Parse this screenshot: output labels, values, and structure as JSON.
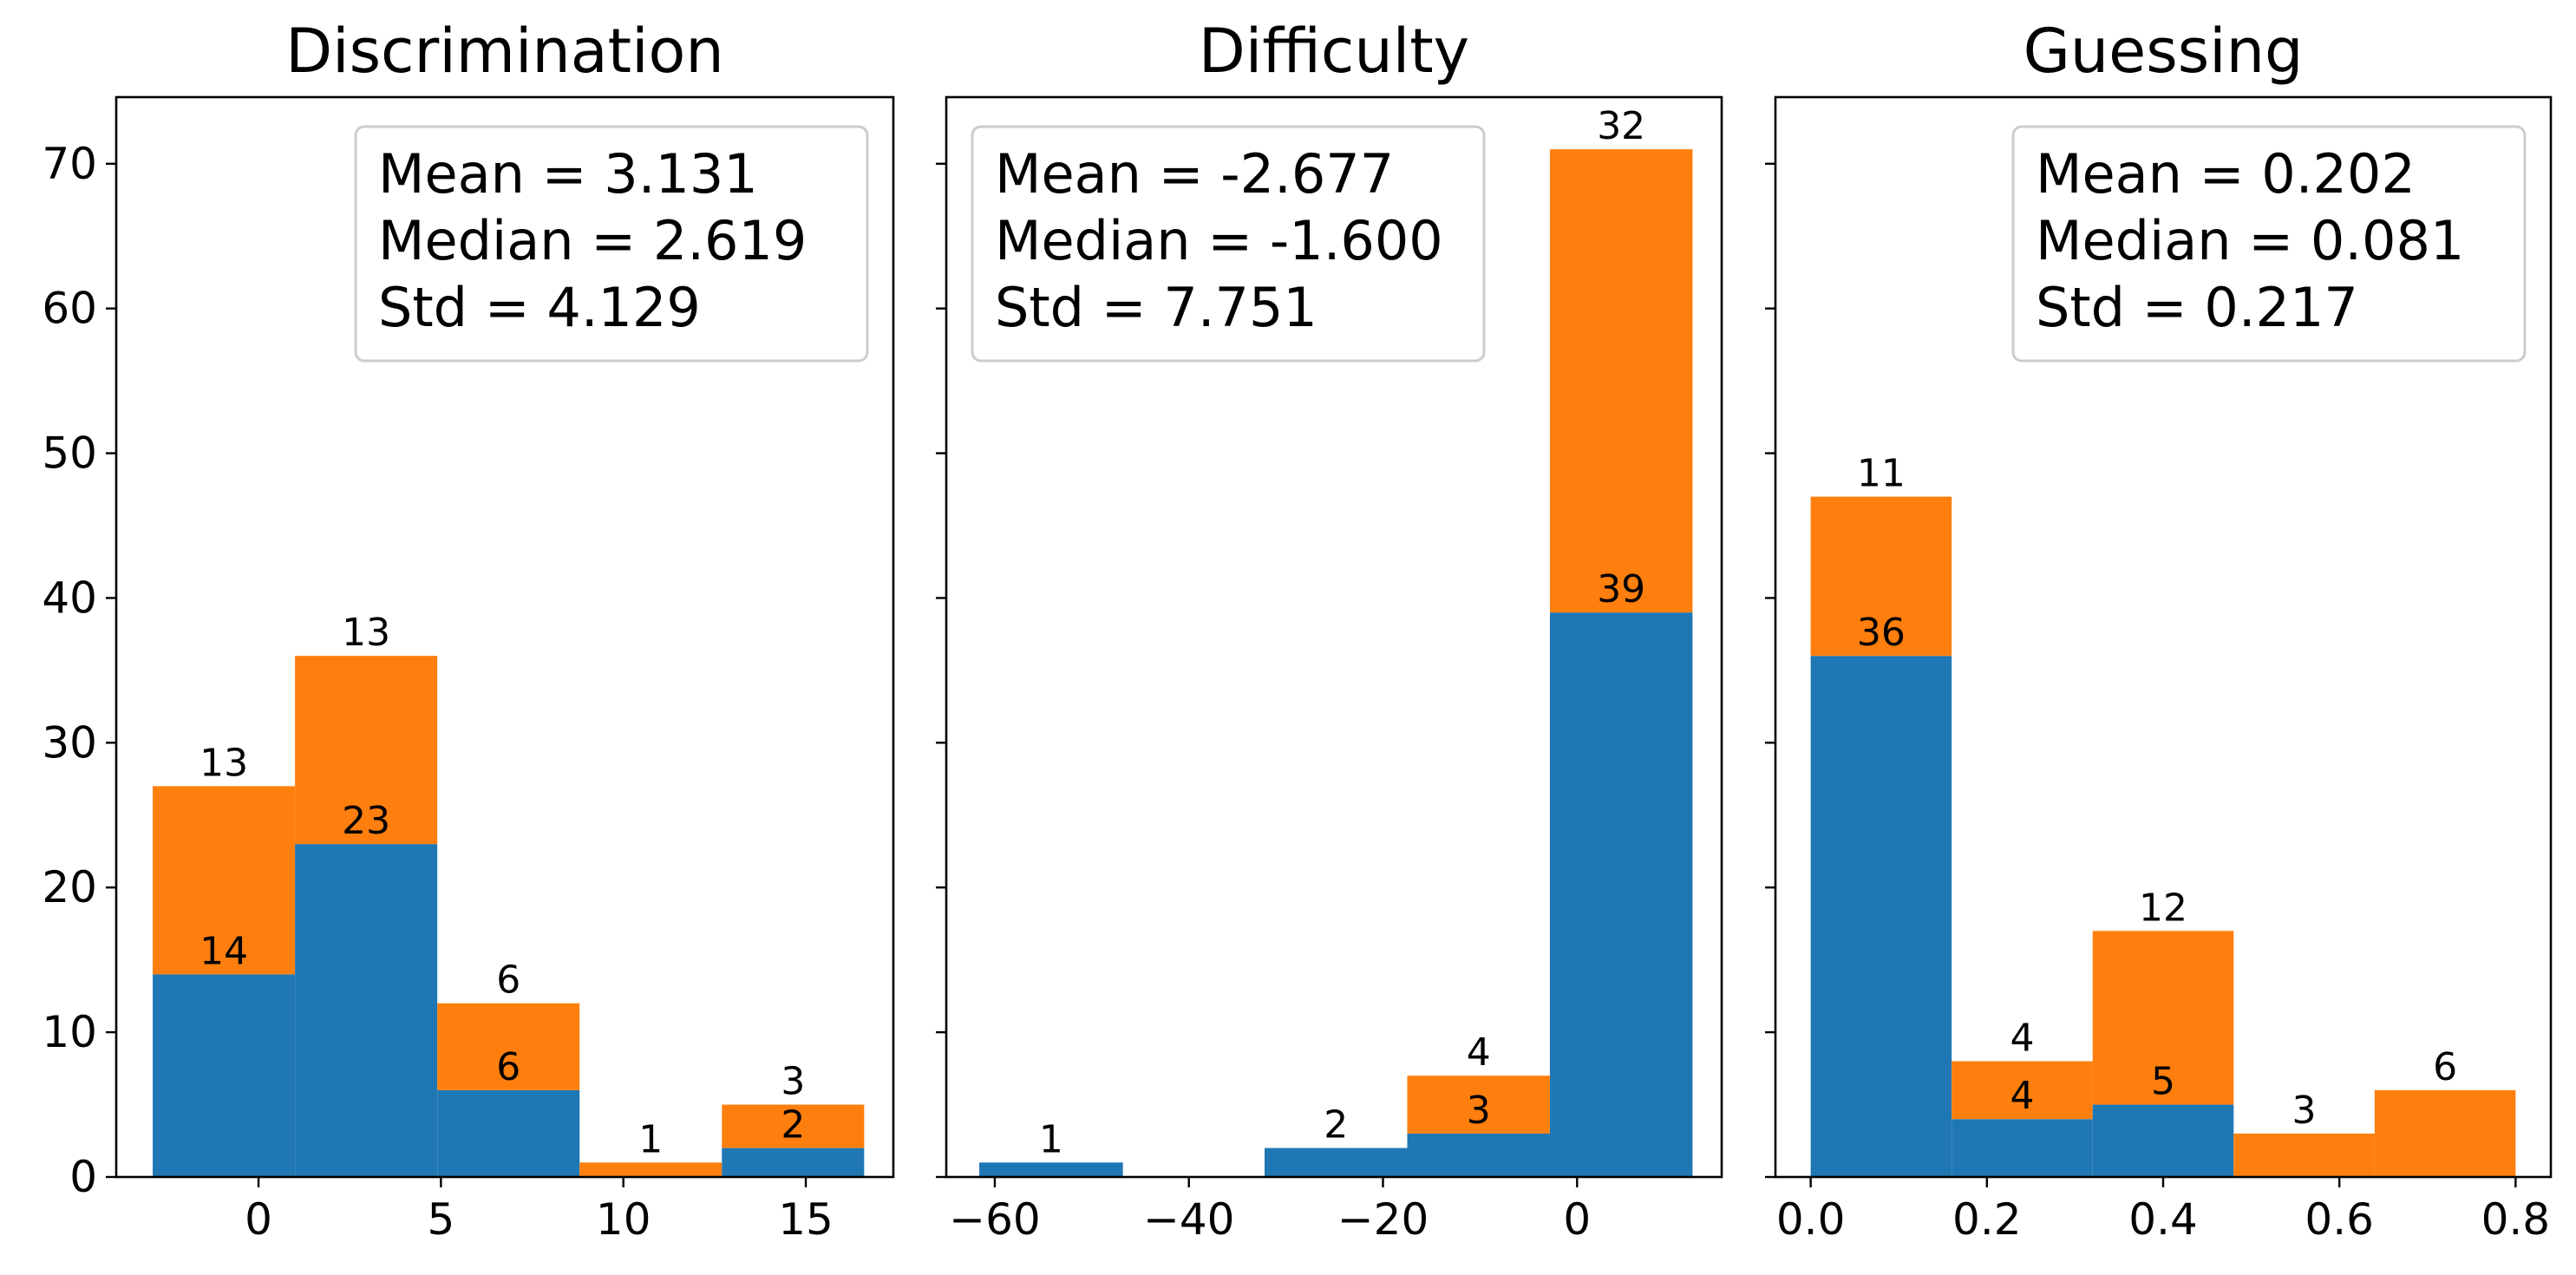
{
  "chart_data": [
    {
      "type": "bar",
      "stacked": true,
      "title": "Discrimination",
      "xlim": [
        -3.9,
        17.4
      ],
      "ylim": [
        0,
        74.6
      ],
      "xticks": [
        0,
        5,
        10,
        15
      ],
      "yticks": [
        0,
        10,
        20,
        30,
        40,
        50,
        60,
        70
      ],
      "bin_edges": [
        -2.9,
        1.0,
        4.9,
        8.8,
        12.7,
        16.6
      ],
      "series": [
        {
          "color": "#1f77b4",
          "values": [
            14,
            23,
            6,
            0,
            2
          ],
          "labels": [
            "14",
            "23",
            "6",
            "",
            "2"
          ]
        },
        {
          "color": "#ff7f0e",
          "values": [
            13,
            13,
            6,
            1,
            3
          ],
          "labels": [
            "13",
            "13",
            "6",
            "1",
            "3"
          ]
        }
      ],
      "stats": [
        "Mean = 3.131",
        "Median = 2.619",
        "Std = 4.129"
      ],
      "stats_position": "top-right"
    },
    {
      "type": "bar",
      "stacked": true,
      "title": "Difficulty",
      "xlim": [
        -65.0,
        14.9
      ],
      "ylim": [
        0,
        74.6
      ],
      "xticks": [
        -60,
        -40,
        -20,
        0
      ],
      "xtick_labels": [
        "−60",
        "−40",
        "−20",
        "0"
      ],
      "yticks": [
        0,
        10,
        20,
        30,
        40,
        50,
        60,
        70
      ],
      "bin_edges": [
        -61.6,
        -46.8,
        -32.2,
        -17.5,
        -2.8,
        11.9
      ],
      "series": [
        {
          "color": "#1f77b4",
          "values": [
            1,
            0,
            2,
            3,
            39
          ],
          "labels": [
            "1",
            "",
            "2",
            "3",
            "39"
          ]
        },
        {
          "color": "#ff7f0e",
          "values": [
            0,
            0,
            0,
            4,
            32
          ],
          "labels": [
            "",
            "",
            "",
            "4",
            "32"
          ]
        }
      ],
      "stats": [
        "Mean = -2.677",
        "Median = -1.600",
        "Std = 7.751"
      ],
      "stats_position": "top-left"
    },
    {
      "type": "bar",
      "stacked": true,
      "title": "Guessing",
      "xlim": [
        -0.04,
        0.84
      ],
      "ylim": [
        0,
        74.6
      ],
      "xticks": [
        0.0,
        0.2,
        0.4,
        0.6,
        0.8
      ],
      "xtick_labels": [
        "0.0",
        "0.2",
        "0.4",
        "0.6",
        "0.8"
      ],
      "yticks": [
        0,
        10,
        20,
        30,
        40,
        50,
        60,
        70
      ],
      "bin_edges": [
        0.0,
        0.16,
        0.32,
        0.48,
        0.64,
        0.8
      ],
      "series": [
        {
          "color": "#1f77b4",
          "values": [
            36,
            4,
            5,
            0,
            0
          ],
          "labels": [
            "36",
            "4",
            "5",
            "",
            ""
          ]
        },
        {
          "color": "#ff7f0e",
          "values": [
            11,
            4,
            12,
            3,
            6
          ],
          "labels": [
            "11",
            "4",
            "12",
            "3",
            "6"
          ]
        }
      ],
      "stats": [
        "Mean = 0.202",
        "Median = 0.081",
        "Std = 0.217"
      ],
      "stats_position": "top-right"
    }
  ]
}
